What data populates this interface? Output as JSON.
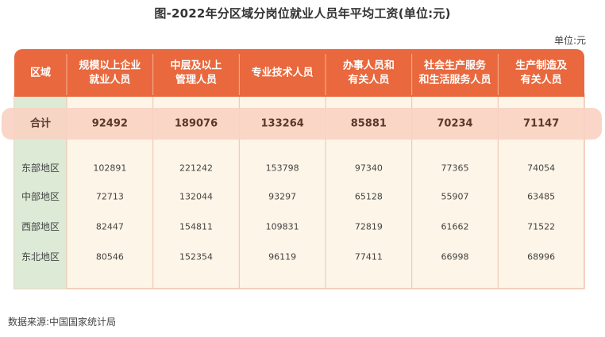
{
  "title": "图-2022年分区域分岗位就业人员年平均工资(单位:元)",
  "unit": "单位:元",
  "source": "数据来源:中国国家统计局",
  "colors": {
    "header_bg": "#e9683d",
    "total_band": "#f8d3c3",
    "region_col_bg": "#dcead6",
    "body_bg": "#fdf5e7"
  },
  "table": {
    "region_header": "区域",
    "columns": [
      [
        "规模以上企业",
        "就业人员"
      ],
      [
        "中层及以上",
        "管理人员"
      ],
      [
        "专业技术人员"
      ],
      [
        "办事人员和",
        "有关人员"
      ],
      [
        "社会生产服务",
        "和生活服务人员"
      ],
      [
        "生产制造及",
        "有关人员"
      ]
    ],
    "total": {
      "label": "合计",
      "values": [
        "92492",
        "189076",
        "133264",
        "85881",
        "70234",
        "71147"
      ]
    },
    "rows": [
      {
        "region": "东部地区",
        "values": [
          "102891",
          "221242",
          "153798",
          "97340",
          "77365",
          "74054"
        ]
      },
      {
        "region": "中部地区",
        "values": [
          "72713",
          "132044",
          "93297",
          "65128",
          "55907",
          "63485"
        ]
      },
      {
        "region": "西部地区",
        "values": [
          "82447",
          "154811",
          "109831",
          "72819",
          "61662",
          "71522"
        ]
      },
      {
        "region": "东北地区",
        "values": [
          "80546",
          "152354",
          "96119",
          "77411",
          "66998",
          "68996"
        ]
      }
    ]
  }
}
